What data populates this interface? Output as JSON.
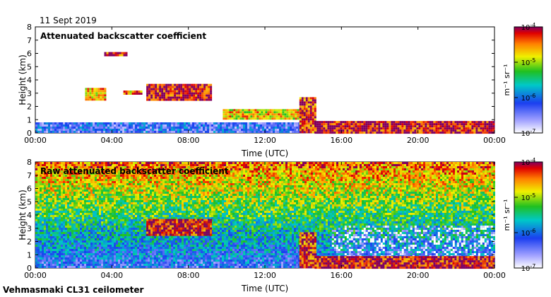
{
  "date_label": "11 Sept 2019",
  "footer_label": "Vehmasmaki CL31 ceilometer",
  "chart_data": [
    {
      "type": "heatmap",
      "title": "Attenuated backscatter coefficient",
      "xlabel": "Time (UTC)",
      "ylabel": "Height (km)",
      "x_ticks": [
        "00:00",
        "04:00",
        "08:00",
        "12:00",
        "16:00",
        "20:00",
        "00:00"
      ],
      "x_range_hours": [
        0,
        24
      ],
      "y_ticks": [
        0,
        1,
        2,
        3,
        4,
        5,
        6,
        7,
        8
      ],
      "ylim": [
        0,
        8
      ],
      "colorbar": {
        "scale": "log",
        "ticks": [
          "10^-7",
          "10^-6",
          "10^-5",
          "10^-4"
        ],
        "unit_label": "m⁻¹ sr⁻¹",
        "range": [
          1e-07,
          0.0001
        ]
      },
      "features": [
        {
          "name": "near-surface aerosol layer",
          "from_h": 0,
          "to_h": 14,
          "height_km": [
            0,
            0.8
          ],
          "level": 0.25
        },
        {
          "name": "cloud patch",
          "from_h": 2.6,
          "to_h": 3.7,
          "height_km": [
            2.5,
            3.4
          ],
          "level": 0.8
        },
        {
          "name": "cloud patch",
          "from_h": 4.6,
          "to_h": 5.5,
          "height_km": [
            2.9,
            3.2
          ],
          "level": 0.82
        },
        {
          "name": "cloud layer",
          "from_h": 5.8,
          "to_h": 9.2,
          "height_km": [
            2.5,
            3.7
          ],
          "level": 0.95
        },
        {
          "name": "cloud patch",
          "from_h": 3.6,
          "to_h": 4.8,
          "height_km": [
            5.8,
            6.1
          ],
          "level": 0.9
        },
        {
          "name": "low cloud",
          "from_h": 9.8,
          "to_h": 14.2,
          "height_km": [
            1.0,
            1.8
          ],
          "level": 0.75
        },
        {
          "name": "precipitation shaft",
          "from_h": 13.8,
          "to_h": 14.6,
          "height_km": [
            0,
            2.7
          ],
          "level": 0.9
        },
        {
          "name": "descending low cloud",
          "from_h": 14.6,
          "to_h": 24,
          "height_km": [
            0,
            0.9
          ],
          "level": 0.95
        }
      ]
    },
    {
      "type": "heatmap",
      "title": "Raw attenuated backscatter coefficient",
      "xlabel": "Time (UTC)",
      "ylabel": "Height (km)",
      "x_ticks": [
        "00:00",
        "04:00",
        "08:00",
        "12:00",
        "16:00",
        "20:00",
        "00:00"
      ],
      "x_range_hours": [
        0,
        24
      ],
      "y_ticks": [
        0,
        1,
        2,
        3,
        4,
        5,
        6,
        7,
        8
      ],
      "ylim": [
        0,
        8
      ],
      "colorbar": {
        "scale": "log",
        "ticks": [
          "10^-7",
          "10^-6",
          "10^-5",
          "10^-4"
        ],
        "unit_label": "m⁻¹ sr⁻¹",
        "range": [
          1e-07,
          0.0001
        ]
      },
      "features": [
        {
          "name": "noise increasing with height",
          "from_h": 0,
          "to_h": 24,
          "height_km": [
            0,
            8
          ],
          "level": 0.6
        },
        {
          "name": "clear sky low-noise region",
          "from_h": 15.5,
          "to_h": 24,
          "height_km": [
            0.3,
            3.2
          ],
          "level": 0.05
        },
        {
          "name": "cloud layer",
          "from_h": 5.8,
          "to_h": 9.2,
          "height_km": [
            2.5,
            3.7
          ],
          "level": 0.95
        },
        {
          "name": "precipitation shaft",
          "from_h": 13.8,
          "to_h": 14.6,
          "height_km": [
            0,
            2.7
          ],
          "level": 0.9
        },
        {
          "name": "descending low cloud",
          "from_h": 14.6,
          "to_h": 24,
          "height_km": [
            0,
            0.9
          ],
          "level": 0.95
        }
      ]
    }
  ]
}
